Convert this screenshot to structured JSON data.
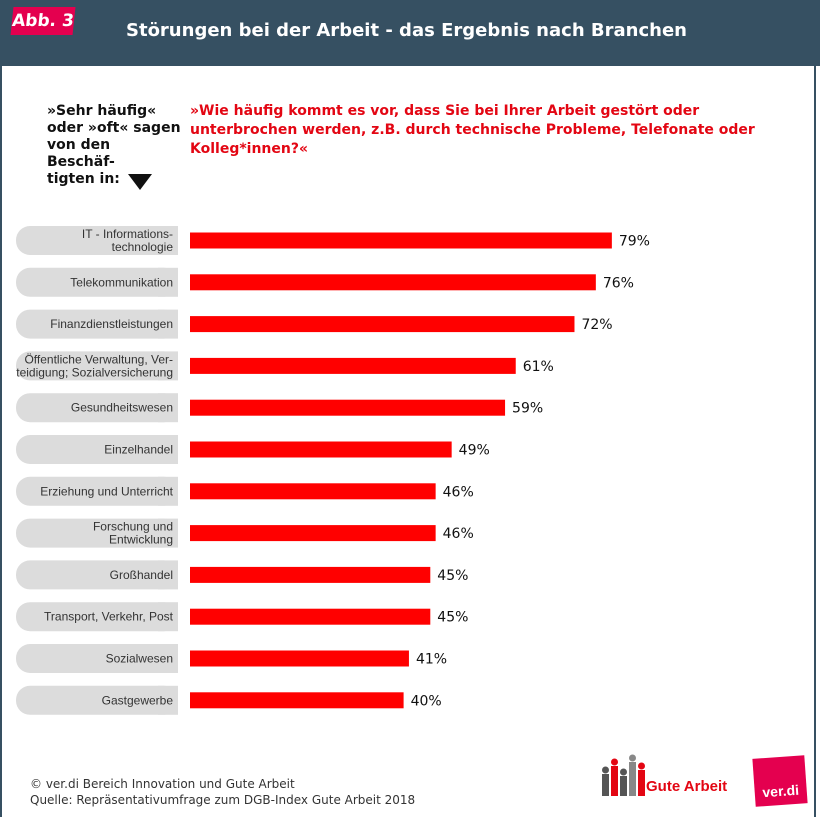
{
  "header": {
    "badge": "Abb. 3",
    "title": "Störungen bei der Arbeit - das Ergebnis nach Branchen"
  },
  "intro": "»Sehr häufig«\noder »oft« sagen\nvon den Beschäf-\ntigten in:",
  "question": "»Wie häufig kommt es vor, dass Sie bei Ihrer Arbeit gestört oder unterbrochen werden, z.B. durch technische Probleme, Telefonate oder Kolleg*innen?«",
  "chart_data": {
    "type": "bar",
    "orientation": "horizontal",
    "title": "Störungen bei der Arbeit - das Ergebnis nach Branchen",
    "categories": [
      "IT - Informations-\ntechnologie",
      "Telekommunikation",
      "Finanzdienstleistungen",
      "Öffentliche Verwaltung, Ver-\nteidigung; Sozialversicherung",
      "Gesundheitswesen",
      "Einzelhandel",
      "Erziehung und Unterricht",
      "Forschung und\nEntwicklung",
      "Großhandel",
      "Transport, Verkehr, Post",
      "Sozialwesen",
      "Gastgewerbe"
    ],
    "values": [
      79,
      76,
      72,
      61,
      59,
      49,
      46,
      46,
      45,
      45,
      41,
      40
    ],
    "value_labels": [
      "79%",
      "76%",
      "72%",
      "61%",
      "59%",
      "49%",
      "46%",
      "46%",
      "45%",
      "45%",
      "41%",
      "40%"
    ],
    "unit": "%",
    "xlim": [
      0,
      100
    ],
    "grid": false,
    "legend": "none",
    "bar_color": "#ff0000",
    "label_bg_color": "#dcdcdc"
  },
  "footer": {
    "line1": "© ver.di Bereich Innovation und Gute Arbeit",
    "line2": "Quelle: Repräsentativumfrage zum DGB-Index Gute Arbeit 2018"
  },
  "logos": {
    "gute_arbeit": "Gute Arbeit",
    "verdi": "ver.di"
  },
  "colors": {
    "header_bg": "#365062",
    "accent": "#e4004f",
    "question_text": "#e30613"
  }
}
